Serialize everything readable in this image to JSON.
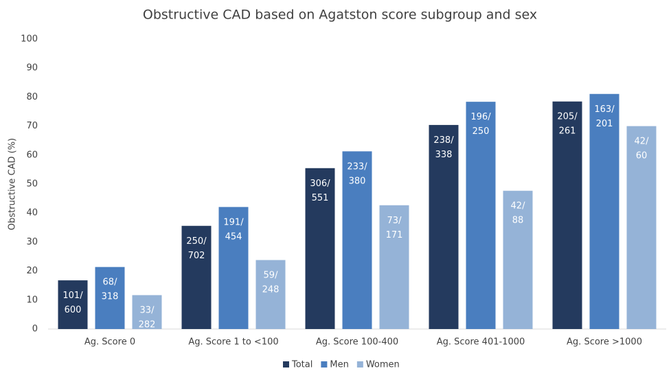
{
  "chart_data": {
    "type": "bar",
    "title": "Obstructive CAD based on Agatston score subgroup and sex",
    "y_label": "Obstructive CAD (%)",
    "categories": [
      "Ag. Score 0",
      "Ag. Score 1 to <100",
      "Ag. Score 100-400",
      "Ag. Score 401-1000",
      "Ag. Score >1000"
    ],
    "series": [
      {
        "name": "Total",
        "color": "#243a5e",
        "values": [
          16.8,
          35.6,
          55.5,
          70.4,
          78.5
        ],
        "value_labels": [
          "101/600",
          "250/702",
          "306/551",
          "238/338",
          "205/261"
        ]
      },
      {
        "name": "Men",
        "color": "#4a7ebf",
        "values": [
          21.4,
          42.1,
          61.3,
          78.4,
          81.1
        ],
        "value_labels": [
          "68/318",
          "191/454",
          "233/380",
          "196/250",
          "163/201"
        ]
      },
      {
        "name": "Women",
        "color": "#95b3d7",
        "values": [
          11.7,
          23.8,
          42.7,
          47.7,
          70.0
        ],
        "value_labels": [
          "33/282",
          "59/248",
          "73/171",
          "42/88",
          "42/60"
        ]
      }
    ],
    "ylim": [
      0,
      100
    ],
    "yticks": [
      0,
      10,
      20,
      30,
      40,
      50,
      60,
      70,
      80,
      90,
      100
    ],
    "grid": false,
    "legend": "bottom"
  }
}
